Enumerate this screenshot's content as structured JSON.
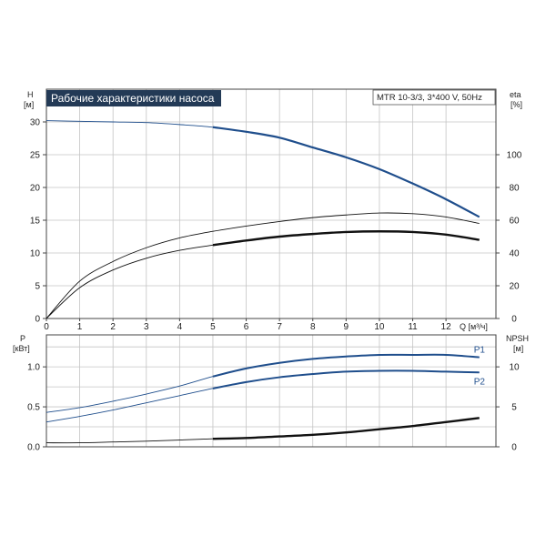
{
  "chart_data": [
    {
      "type": "line",
      "title": "Рабочие характеристики насоса",
      "subtitle": "MTR 10-3/3, 3*400 V, 50Hz",
      "xlabel": "Q [м³/ч]",
      "ylabel": "H\n[м]",
      "y2label": "eta\n[%]",
      "x_ticks": [
        "0",
        "1",
        "2",
        "3",
        "4",
        "5",
        "6",
        "7",
        "8",
        "9",
        "10",
        "11",
        "12"
      ],
      "y_ticks": [
        "0",
        "5",
        "10",
        "15",
        "20",
        "25",
        "30"
      ],
      "y2_ticks": [
        "0",
        "20",
        "40",
        "60",
        "80",
        "100"
      ],
      "xlim": [
        0,
        13.5
      ],
      "ylim": [
        0,
        35
      ],
      "y2lim": [
        0,
        140
      ],
      "grid": true,
      "series": [
        {
          "axis": "left",
          "color": "#1f4e8c",
          "x": [
            0,
            1,
            2,
            3,
            4,
            5,
            6,
            7,
            8,
            9,
            10,
            11,
            12,
            13
          ],
          "y": [
            30.2,
            30.1,
            30.0,
            29.9,
            29.6,
            29.2,
            28.5,
            27.6,
            26.1,
            24.6,
            22.8,
            20.6,
            18.2,
            15.5
          ]
        },
        {
          "axis": "right",
          "color": "#111111",
          "x": [
            0,
            1,
            2,
            3,
            4,
            5,
            6,
            7,
            8,
            9,
            10,
            11,
            12,
            13
          ],
          "y": [
            0,
            22.8,
            34.8,
            43.2,
            49.2,
            53.2,
            56.4,
            59.2,
            61.6,
            63.2,
            64.4,
            64.0,
            62.0,
            58.0
          ]
        },
        {
          "axis": "right",
          "color": "#111111",
          "x": [
            0,
            1,
            2,
            3,
            4,
            5,
            6,
            7,
            8,
            9,
            10,
            11,
            12,
            13
          ],
          "y": [
            0,
            18.8,
            29.6,
            36.8,
            41.6,
            44.8,
            47.6,
            50.0,
            51.6,
            52.8,
            53.2,
            52.8,
            51.2,
            48.0
          ]
        }
      ]
    },
    {
      "type": "line",
      "ylabel": "P\n[кВт]",
      "y2label": "NPSH\n[м]",
      "y_ticks": [
        "0.0",
        "0.5",
        "1.0"
      ],
      "y2_ticks": [
        "0",
        "5",
        "10"
      ],
      "xlim": [
        0,
        13.5
      ],
      "ylim": [
        0,
        1.4
      ],
      "y2lim": [
        0,
        14
      ],
      "grid": true,
      "series": [
        {
          "name": "P1",
          "axis": "left",
          "color": "#1f4e8c",
          "x": [
            0,
            1,
            2,
            3,
            4,
            5,
            6,
            7,
            8,
            9,
            10,
            11,
            12,
            13
          ],
          "y": [
            0.43,
            0.49,
            0.57,
            0.66,
            0.76,
            0.88,
            0.98,
            1.05,
            1.1,
            1.13,
            1.15,
            1.15,
            1.15,
            1.12
          ]
        },
        {
          "name": "P2",
          "axis": "left",
          "color": "#1f4e8c",
          "x": [
            0,
            1,
            2,
            3,
            4,
            5,
            6,
            7,
            8,
            9,
            10,
            11,
            12,
            13
          ],
          "y": [
            0.31,
            0.38,
            0.46,
            0.55,
            0.64,
            0.73,
            0.81,
            0.87,
            0.91,
            0.94,
            0.95,
            0.95,
            0.94,
            0.93
          ]
        },
        {
          "axis": "right",
          "color": "#111111",
          "x": [
            0,
            1,
            2,
            3,
            4,
            5,
            6,
            7,
            8,
            9,
            10,
            11,
            12,
            13
          ],
          "y": [
            0.5,
            0.5,
            0.6,
            0.7,
            0.85,
            1.0,
            1.1,
            1.3,
            1.5,
            1.8,
            2.2,
            2.6,
            3.1,
            3.6
          ]
        }
      ]
    }
  ]
}
